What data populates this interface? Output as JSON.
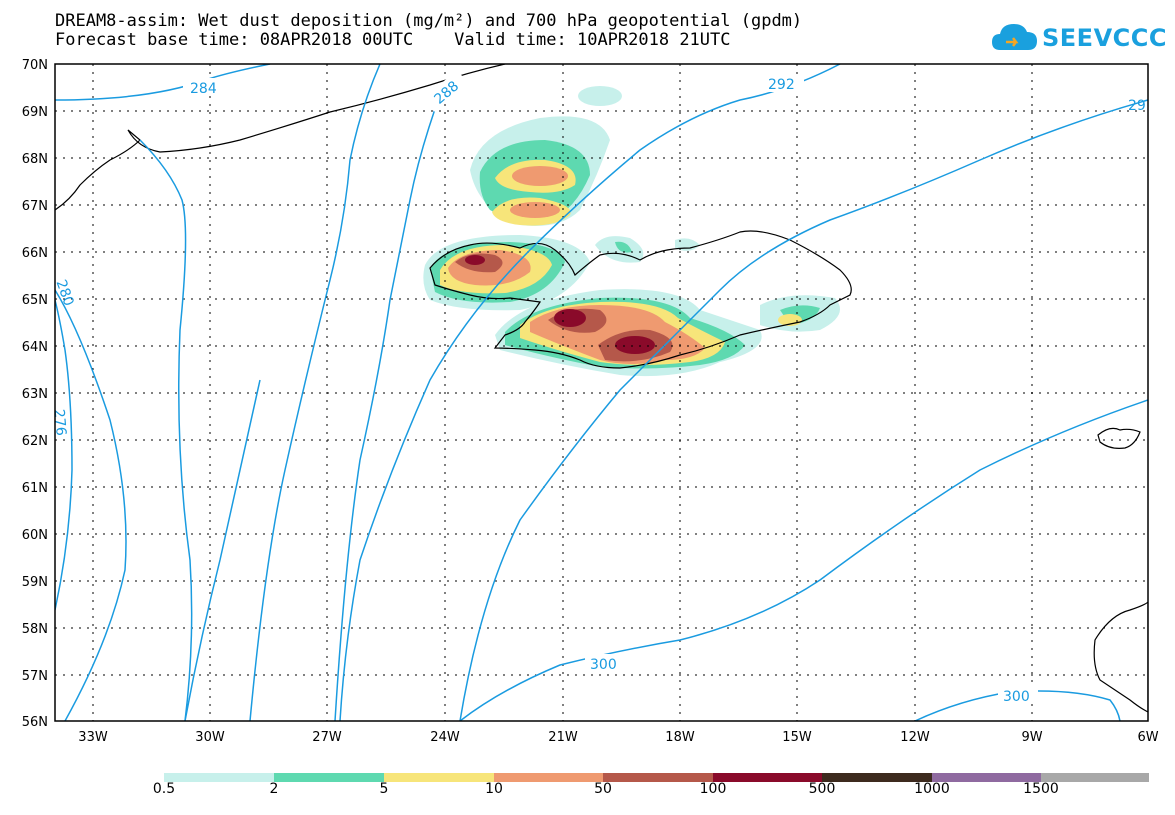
{
  "title": {
    "line1": "DREAM8-assim: Wet dust deposition (mg/m²) and 700 hPa geopotential (gpdm)",
    "line2": "Forecast base time: 08APR2018 00UTC    Valid time: 10APR2018 21UTC"
  },
  "logo": {
    "text": "SEEVCCC",
    "color": "#1aa0de"
  },
  "map": {
    "lat_labels": [
      "70N",
      "69N",
      "68N",
      "67N",
      "66N",
      "65N",
      "64N",
      "63N",
      "62N",
      "61N",
      "60N",
      "59N",
      "58N",
      "57N",
      "56N"
    ],
    "lon_labels": [
      "33W",
      "30W",
      "27W",
      "24W",
      "21W",
      "18W",
      "15W",
      "12W",
      "9W",
      "6W"
    ],
    "contour_labels": [
      "284",
      "288",
      "292",
      "29",
      "280",
      "276",
      "300",
      "300"
    ],
    "contour_color": "#1a9be0"
  },
  "legend": {
    "labels": [
      "0.5",
      "2",
      "5",
      "10",
      "50",
      "100",
      "500",
      "1000",
      "1500"
    ],
    "colors": [
      "#c7f0eb",
      "#5ed9b0",
      "#f7e57a",
      "#ef9a70",
      "#b5584a",
      "#8a0a2a",
      "#3d2a1e",
      "#8f6aa0",
      "#a8a8a8"
    ]
  }
}
